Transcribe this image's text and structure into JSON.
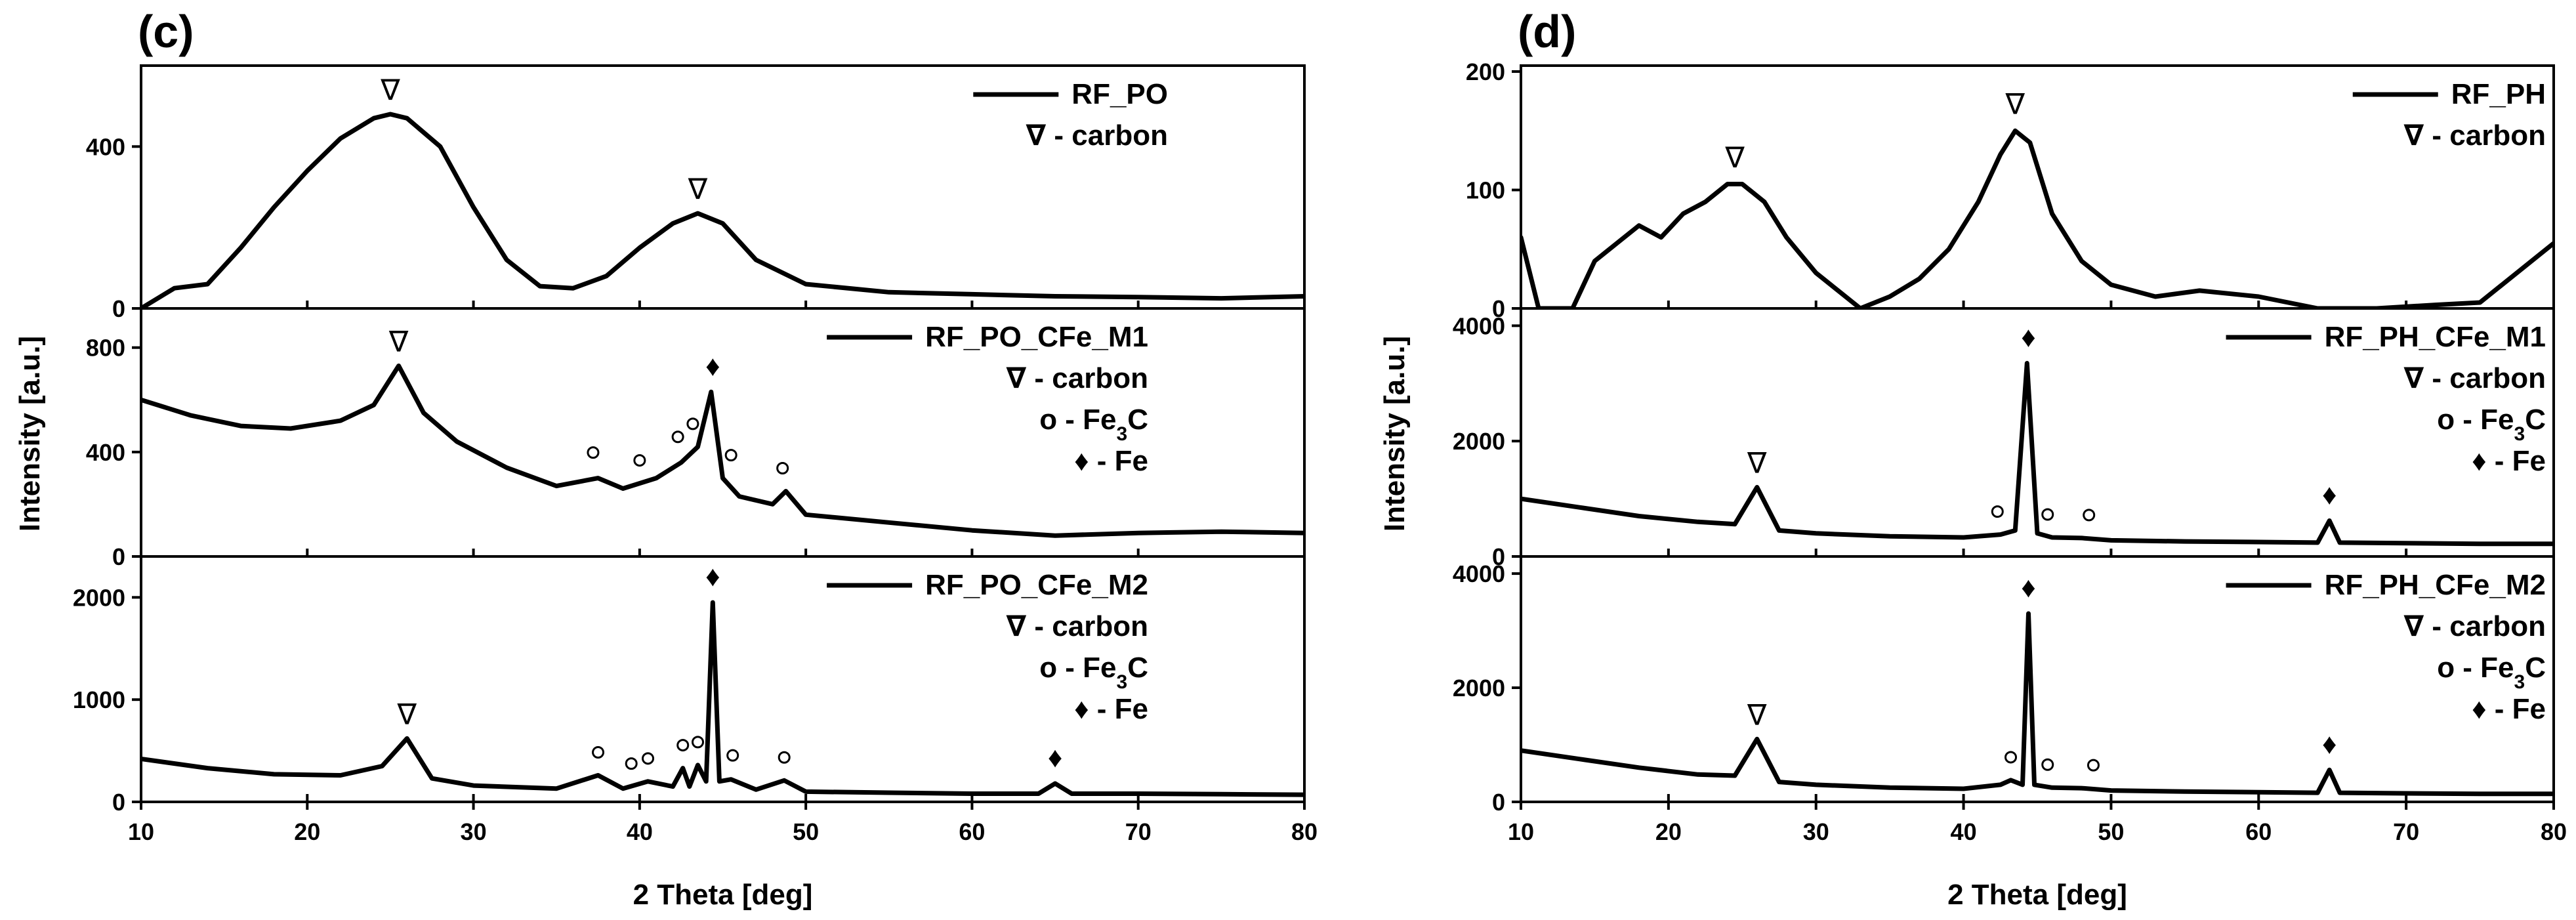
{
  "chart_data": [
    {
      "panel": "(c)",
      "type": "line",
      "xlabel": "2 Theta [deg]",
      "ylabel": "Intensity [a.u.]",
      "xlim": [
        10,
        80
      ],
      "x_ticks": [
        10,
        20,
        30,
        40,
        50,
        60,
        70,
        80
      ],
      "subplots": [
        {
          "series_name": "RF_PO",
          "ylim": [
            0,
            600
          ],
          "y_ticks": [
            0,
            400
          ],
          "legend": [
            "RF_PO",
            "∇ - carbon"
          ],
          "x": [
            10,
            12,
            14,
            16,
            18,
            20,
            22,
            24,
            25,
            26,
            28,
            30,
            32,
            34,
            36,
            38,
            40,
            42,
            43.5,
            45,
            47,
            50,
            55,
            60,
            65,
            70,
            75,
            80
          ],
          "values": [
            0,
            50,
            60,
            150,
            250,
            340,
            420,
            470,
            480,
            470,
            400,
            250,
            120,
            55,
            50,
            80,
            150,
            210,
            235,
            210,
            120,
            60,
            40,
            35,
            30,
            28,
            25,
            30
          ],
          "annotations": [
            {
              "symbol": "∇",
              "x": 25.0,
              "y": 480
            },
            {
              "symbol": "∇",
              "x": 43.5,
              "y": 235
            }
          ]
        },
        {
          "series_name": "RF_PO_CFe_M1",
          "ylim": [
            0,
            950
          ],
          "y_ticks": [
            0,
            400,
            800
          ],
          "legend": [
            "RF_PO_CFe_M1",
            "∇ - carbon",
            "o - Fe3C",
            "♦ - Fe"
          ],
          "x": [
            10,
            13,
            16,
            19,
            22,
            24,
            25.5,
            27,
            29,
            32,
            35,
            37.5,
            39,
            41,
            42.5,
            43.5,
            44.3,
            45,
            46,
            48,
            48.8,
            50,
            55,
            60,
            65,
            70,
            75,
            80
          ],
          "values": [
            600,
            540,
            500,
            490,
            520,
            580,
            730,
            550,
            440,
            340,
            270,
            300,
            260,
            300,
            360,
            420,
            630,
            300,
            230,
            200,
            250,
            160,
            130,
            100,
            80,
            90,
            95,
            90
          ],
          "annotations": [
            {
              "symbol": "∇",
              "x": 25.5,
              "y": 730
            },
            {
              "symbol": "o",
              "x": 37.2,
              "y": 310
            },
            {
              "symbol": "o",
              "x": 40.0,
              "y": 280
            },
            {
              "symbol": "o",
              "x": 42.3,
              "y": 370
            },
            {
              "symbol": "o",
              "x": 43.2,
              "y": 420
            },
            {
              "symbol": "o",
              "x": 45.5,
              "y": 300
            },
            {
              "symbol": "o",
              "x": 48.6,
              "y": 250
            },
            {
              "symbol": "♦",
              "x": 44.4,
              "y": 630
            }
          ]
        },
        {
          "series_name": "RF_PO_CFe_M2",
          "ylim": [
            0,
            2400
          ],
          "y_ticks": [
            0,
            1000,
            2000
          ],
          "legend": [
            "RF_PO_CFe_M2",
            "∇ - carbon",
            "o - Fe3C",
            "♦ - Fe"
          ],
          "x": [
            10,
            14,
            18,
            22,
            24.5,
            26,
            27.5,
            30,
            35,
            37.5,
            39,
            40.5,
            42,
            42.6,
            43,
            43.5,
            44,
            44.4,
            44.8,
            45.5,
            47,
            48.7,
            50,
            55,
            60,
            64,
            65,
            66,
            70,
            75,
            80
          ],
          "values": [
            420,
            330,
            270,
            260,
            350,
            620,
            230,
            160,
            130,
            260,
            130,
            200,
            150,
            330,
            150,
            360,
            200,
            1950,
            200,
            220,
            120,
            210,
            100,
            90,
            80,
            80,
            180,
            80,
            80,
            75,
            70
          ],
          "annotations": [
            {
              "symbol": "∇",
              "x": 26.0,
              "y": 620
            },
            {
              "symbol": "o",
              "x": 37.5,
              "y": 260
            },
            {
              "symbol": "o",
              "x": 39.5,
              "y": 150
            },
            {
              "symbol": "o",
              "x": 40.5,
              "y": 200
            },
            {
              "symbol": "o",
              "x": 42.6,
              "y": 330
            },
            {
              "symbol": "o",
              "x": 43.5,
              "y": 360
            },
            {
              "symbol": "o",
              "x": 45.6,
              "y": 230
            },
            {
              "symbol": "o",
              "x": 48.7,
              "y": 210
            },
            {
              "symbol": "♦",
              "x": 44.4,
              "y": 1950
            },
            {
              "symbol": "♦",
              "x": 65.0,
              "y": 180
            }
          ]
        }
      ]
    },
    {
      "panel": "(d)",
      "type": "line",
      "xlabel": "2 Theta [deg]",
      "ylabel": "Intensity [a.u.]",
      "xlim": [
        10,
        80
      ],
      "x_ticks": [
        10,
        20,
        30,
        40,
        50,
        60,
        70,
        80
      ],
      "subplots": [
        {
          "series_name": "RF_PH",
          "ylim": [
            0,
            205
          ],
          "y_ticks": [
            0,
            100,
            200
          ],
          "legend": [
            "RF_PH",
            "∇ - carbon"
          ],
          "x": [
            10,
            11.2,
            13.5,
            15,
            16.5,
            18,
            19.5,
            21,
            22.5,
            24,
            25,
            26.5,
            28,
            30,
            31.5,
            33,
            35,
            37,
            39,
            41,
            42.5,
            43.5,
            44.5,
            46,
            48,
            50,
            53,
            56,
            60,
            64,
            68,
            72,
            75,
            80
          ],
          "values": [
            60,
            0,
            0,
            40,
            55,
            70,
            60,
            80,
            90,
            105,
            105,
            90,
            60,
            30,
            15,
            0,
            10,
            25,
            50,
            90,
            130,
            150,
            140,
            80,
            40,
            20,
            10,
            15,
            10,
            0,
            0,
            3,
            5,
            55
          ],
          "annotations": [
            {
              "symbol": "∇",
              "x": 24.5,
              "y": 107
            },
            {
              "symbol": "∇",
              "x": 43.5,
              "y": 152
            }
          ]
        },
        {
          "series_name": "RF_PH_CFe_M1",
          "ylim": [
            0,
            4300
          ],
          "y_ticks": [
            0,
            2000,
            4000
          ],
          "legend": [
            "RF_PH_CFe_M1",
            "∇ - carbon",
            "o - Fe3C",
            "♦ - Fe"
          ],
          "x": [
            10,
            14,
            18,
            22,
            24.5,
            26,
            27.5,
            30,
            35,
            40,
            42.5,
            43.5,
            44.3,
            45,
            46,
            48,
            50,
            55,
            60,
            64,
            64.8,
            65.5,
            70,
            75,
            80
          ],
          "values": [
            1000,
            850,
            700,
            600,
            560,
            1200,
            450,
            400,
            350,
            330,
            380,
            450,
            3350,
            400,
            330,
            320,
            280,
            260,
            250,
            240,
            620,
            240,
            230,
            220,
            220
          ],
          "annotations": [
            {
              "symbol": "∇",
              "x": 26.0,
              "y": 1200
            },
            {
              "symbol": "o",
              "x": 42.3,
              "y": 380
            },
            {
              "symbol": "o",
              "x": 45.7,
              "y": 330
            },
            {
              "symbol": "o",
              "x": 48.5,
              "y": 320
            },
            {
              "symbol": "♦",
              "x": 44.4,
              "y": 3350
            },
            {
              "symbol": "♦",
              "x": 64.8,
              "y": 620
            }
          ]
        },
        {
          "series_name": "RF_PH_CFe_M2",
          "ylim": [
            0,
            4300
          ],
          "y_ticks": [
            0,
            2000,
            4000
          ],
          "legend": [
            "RF_PH_CFe_M2",
            "∇ - carbon",
            "o - Fe3C",
            "♦ - Fe"
          ],
          "x": [
            10,
            14,
            18,
            22,
            24.5,
            26,
            27.5,
            30,
            35,
            40,
            42.5,
            43.2,
            44,
            44.4,
            44.8,
            46,
            48,
            50,
            55,
            60,
            64,
            64.8,
            65.5,
            70,
            75,
            80
          ],
          "values": [
            900,
            750,
            600,
            480,
            460,
            1100,
            350,
            300,
            250,
            230,
            300,
            380,
            300,
            3300,
            300,
            250,
            240,
            200,
            180,
            170,
            160,
            560,
            160,
            150,
            140,
            140
          ],
          "annotations": [
            {
              "symbol": "∇",
              "x": 26.0,
              "y": 1100
            },
            {
              "symbol": "o",
              "x": 43.2,
              "y": 380
            },
            {
              "symbol": "o",
              "x": 45.7,
              "y": 250
            },
            {
              "symbol": "o",
              "x": 48.8,
              "y": 240
            },
            {
              "symbol": "♦",
              "x": 44.4,
              "y": 3300
            },
            {
              "symbol": "♦",
              "x": 64.8,
              "y": 560
            }
          ]
        }
      ]
    }
  ]
}
